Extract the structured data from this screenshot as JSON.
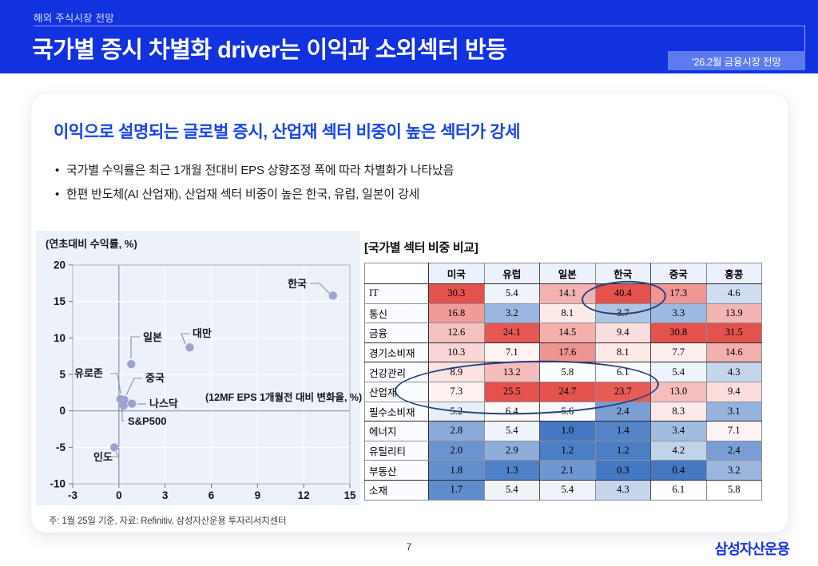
{
  "banner": {
    "eyebrow": "해외 주식시장 전망",
    "title": "국가별 증시 차별화 driver는 이익과 소외섹터 반등",
    "badge": "'26.2월 금융시장 전망"
  },
  "content": {
    "heading": "이익으로 설명되는 글로벌 증시, 산업재 섹터 비중이 높은 섹터가 강세",
    "bullets": [
      "국가별 수익률은 최근 1개월 전대비 EPS 상향조정 폭에 따라 차별화가 나타났음",
      "한편 반도체(AI 산업재), 산업재 섹터 비중이 높은 한국, 유럽, 일본이 강세"
    ],
    "footnote": "주: 1월 25일 기준, 자료: Refinitiv, 삼성자산운용 투자리서치센터"
  },
  "chart_data": [
    {
      "type": "scatter",
      "title": "(연초대비 수익률, %)",
      "xlabel": "(12MF EPS 1개월전 대비 변화율, %)",
      "xlim": [
        -3,
        15
      ],
      "ylim": [
        -10,
        20
      ],
      "xticks": [
        -3,
        0,
        3,
        6,
        9,
        12,
        15
      ],
      "yticks": [
        20,
        15,
        10,
        5,
        0,
        -5,
        -10
      ],
      "grid": true,
      "points": [
        {
          "label": "한국",
          "x": 13.9,
          "y": 15.8
        },
        {
          "label": "대만",
          "x": 4.6,
          "y": 8.7
        },
        {
          "label": "일본",
          "x": 0.8,
          "y": 6.4
        },
        {
          "label": "유로존",
          "x": 0.1,
          "y": 1.6
        },
        {
          "label": "중국",
          "x": 0.35,
          "y": 1.5
        },
        {
          "label": "나스닥",
          "x": 0.85,
          "y": 1.0
        },
        {
          "label": "S&P500",
          "x": 0.3,
          "y": 0.7
        },
        {
          "label": "인도",
          "x": -0.3,
          "y": -5.0
        }
      ]
    },
    {
      "type": "table",
      "title": "[국가별 섹터 비중 비교]",
      "columns": [
        "미국",
        "유럽",
        "일본",
        "한국",
        "중국",
        "홍콩"
      ],
      "rows": [
        {
          "name": "IT",
          "values": [
            30.3,
            5.4,
            14.1,
            40.4,
            17.3,
            4.6
          ]
        },
        {
          "name": "통신",
          "values": [
            16.8,
            3.2,
            8.1,
            3.7,
            3.3,
            13.9
          ]
        },
        {
          "name": "금융",
          "values": [
            12.6,
            24.1,
            14.5,
            9.4,
            30.8,
            31.5
          ]
        },
        {
          "name": "경기소비재",
          "values": [
            10.3,
            7.1,
            17.6,
            8.1,
            7.7,
            14.6
          ]
        },
        {
          "name": "건강관리",
          "values": [
            8.9,
            13.2,
            5.8,
            6.1,
            5.4,
            4.3
          ]
        },
        {
          "name": "산업재",
          "values": [
            7.3,
            25.5,
            24.7,
            23.7,
            13.0,
            9.4
          ]
        },
        {
          "name": "필수소비재",
          "values": [
            5.2,
            6.4,
            5.6,
            2.4,
            8.3,
            3.1
          ]
        },
        {
          "name": "에너지",
          "values": [
            2.8,
            5.4,
            1.0,
            1.4,
            3.4,
            7.1
          ]
        },
        {
          "name": "유틸리티",
          "values": [
            2.0,
            2.9,
            1.2,
            1.2,
            4.2,
            2.4
          ]
        },
        {
          "name": "부동산",
          "values": [
            1.8,
            1.3,
            2.1,
            0.3,
            0.4,
            3.2
          ]
        },
        {
          "name": "소재",
          "values": [
            1.7,
            5.4,
            5.4,
            4.3,
            6.1,
            5.8
          ]
        }
      ],
      "highlights": [
        "IT-한국 40.4",
        "산업재 유럽·일본·한국 25.5 / 24.7 / 23.7"
      ]
    }
  ],
  "footer": {
    "page_number": "7",
    "logo": "삼성자산운용"
  },
  "colors": {
    "banner_blue": "#1232DF",
    "badge_blue": "#5D7BEE",
    "heading_blue": "#1745E8",
    "logo_blue": "#1733DD",
    "point_color": "#9AA4CF",
    "ellipse_navy": "#24407C",
    "heat_red_max": "#E4524D",
    "heat_blue_max": "#4478C2",
    "plot_bg": "#EDF1F9"
  }
}
